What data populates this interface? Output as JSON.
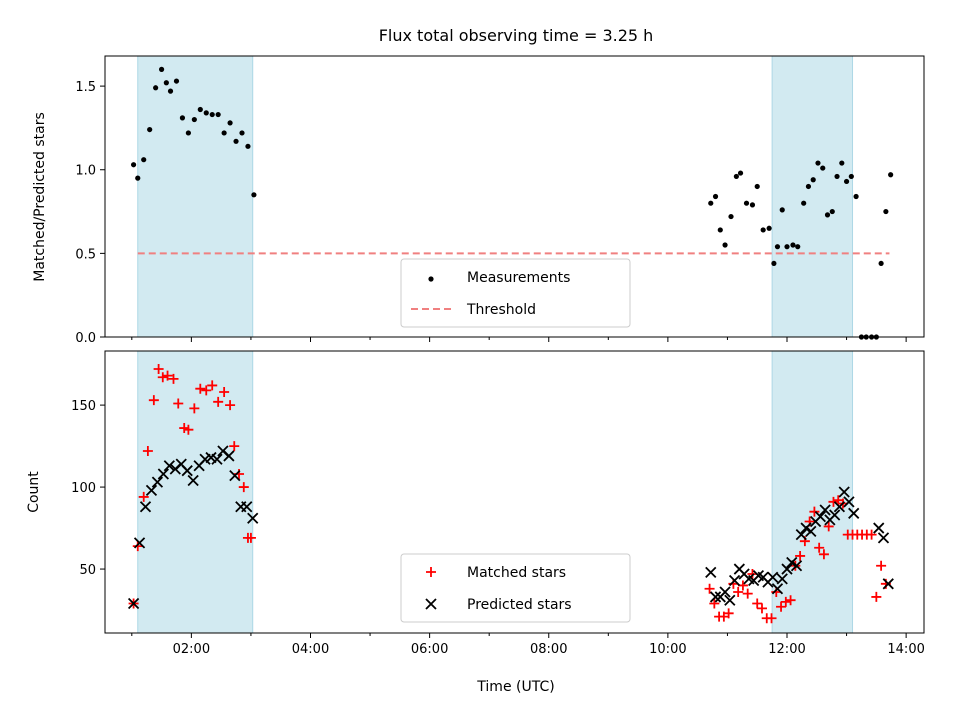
{
  "figure": {
    "title": "Flux total observing time = 3.25 h",
    "xlabel": "Time (UTC)"
  },
  "colors": {
    "band_fill": "#add8e6",
    "measurement": "#000000",
    "threshold": "#f08080",
    "matched": "#ff0000",
    "predicted": "#000000"
  },
  "chart_data": [
    {
      "type": "scatter",
      "panel": "top",
      "ylabel": "Matched/Predicted stars",
      "x_unit": "hours UTC",
      "xlim": [
        0.55,
        14.3
      ],
      "ylim": [
        0,
        1.68
      ],
      "xticks": [
        {
          "v": 2,
          "label": "02:00"
        },
        {
          "v": 4,
          "label": "04:00"
        },
        {
          "v": 6,
          "label": "06:00"
        },
        {
          "v": 8,
          "label": "08:00"
        },
        {
          "v": 10,
          "label": "10:00"
        },
        {
          "v": 12,
          "label": "12:00"
        },
        {
          "v": 14,
          "label": "14:00"
        }
      ],
      "yticks": [
        {
          "v": 0,
          "label": "0.0"
        },
        {
          "v": 0.5,
          "label": "0.5"
        },
        {
          "v": 1.0,
          "label": "1.0"
        },
        {
          "v": 1.5,
          "label": "1.5"
        }
      ],
      "shaded_intervals": [
        [
          1.1,
          3.03
        ],
        [
          11.75,
          13.1
        ]
      ],
      "legend_position": "lower center",
      "series": [
        {
          "name": "Measurements",
          "marker": "dot",
          "x": [
            1.03,
            1.1,
            1.2,
            1.3,
            1.4,
            1.5,
            1.58,
            1.65,
            1.75,
            1.85,
            1.95,
            2.05,
            2.15,
            2.25,
            2.35,
            2.45,
            2.55,
            2.65,
            2.75,
            2.85,
            2.95,
            3.05,
            10.72,
            10.8,
            10.88,
            10.96,
            11.06,
            11.15,
            11.22,
            11.32,
            11.42,
            11.5,
            11.6,
            11.7,
            11.78,
            11.84,
            11.92,
            12.0,
            12.1,
            12.18,
            12.28,
            12.36,
            12.44,
            12.52,
            12.6,
            12.68,
            12.76,
            12.84,
            12.92,
            13.0,
            13.08,
            13.16,
            13.25,
            13.33,
            13.42,
            13.5,
            13.58,
            13.66,
            13.74
          ],
          "y": [
            1.03,
            0.95,
            1.06,
            1.24,
            1.49,
            1.6,
            1.52,
            1.47,
            1.53,
            1.31,
            1.22,
            1.3,
            1.36,
            1.34,
            1.33,
            1.33,
            1.22,
            1.28,
            1.17,
            1.22,
            1.14,
            0.85,
            0.8,
            0.84,
            0.64,
            0.55,
            0.72,
            0.96,
            0.98,
            0.8,
            0.79,
            0.9,
            0.64,
            0.65,
            0.44,
            0.54,
            0.76,
            0.54,
            0.55,
            0.54,
            0.8,
            0.9,
            0.94,
            1.04,
            1.01,
            0.73,
            0.75,
            0.96,
            1.04,
            0.93,
            0.96,
            0.84,
            0.0,
            0.0,
            0.0,
            0.0,
            0.44,
            0.75,
            0.97
          ]
        },
        {
          "name": "Threshold",
          "type": "line",
          "style": "dashed",
          "x": [
            1.1,
            13.72
          ],
          "y": [
            0.5,
            0.5
          ]
        }
      ]
    },
    {
      "type": "scatter",
      "panel": "bottom",
      "ylabel": "Count",
      "x_unit": "hours UTC",
      "xlim": [
        0.55,
        14.3
      ],
      "ylim": [
        11,
        183
      ],
      "xticks": [
        {
          "v": 2,
          "label": "02:00"
        },
        {
          "v": 4,
          "label": "04:00"
        },
        {
          "v": 6,
          "label": "06:00"
        },
        {
          "v": 8,
          "label": "08:00"
        },
        {
          "v": 10,
          "label": "10:00"
        },
        {
          "v": 12,
          "label": "12:00"
        },
        {
          "v": 14,
          "label": "14:00"
        }
      ],
      "yticks": [
        {
          "v": 50,
          "label": "50"
        },
        {
          "v": 100,
          "label": "100"
        },
        {
          "v": 150,
          "label": "150"
        }
      ],
      "shaded_intervals": [
        [
          1.1,
          3.03
        ],
        [
          11.75,
          13.1
        ]
      ],
      "legend_position": "lower center",
      "series": [
        {
          "name": "Matched stars",
          "marker": "plus",
          "x": [
            1.03,
            1.1,
            1.2,
            1.27,
            1.37,
            1.45,
            1.52,
            1.6,
            1.7,
            1.78,
            1.88,
            1.95,
            2.05,
            2.15,
            2.25,
            2.35,
            2.45,
            2.55,
            2.65,
            2.72,
            2.8,
            2.88,
            2.95,
            3.0,
            10.7,
            10.78,
            10.86,
            10.94,
            11.02,
            11.1,
            11.18,
            11.26,
            11.34,
            11.42,
            11.5,
            11.58,
            11.66,
            11.74,
            11.82,
            11.9,
            11.98,
            12.06,
            12.14,
            12.22,
            12.3,
            12.38,
            12.46,
            12.54,
            12.62,
            12.7,
            12.78,
            12.86,
            12.94,
            13.02,
            13.1,
            13.18,
            13.26,
            13.34,
            13.42,
            13.5,
            13.58,
            13.66
          ],
          "y": [
            29,
            64,
            94,
            122,
            153,
            172,
            167,
            168,
            166,
            151,
            136,
            135,
            148,
            160,
            159,
            162,
            152,
            158,
            150,
            125,
            108,
            100,
            69,
            69,
            38,
            29,
            21,
            21,
            23,
            41,
            36,
            40,
            35,
            47,
            29,
            26,
            20,
            20,
            36,
            27,
            30,
            31,
            52,
            58,
            67,
            79,
            85,
            63,
            59,
            76,
            91,
            92,
            90,
            71,
            71,
            71,
            71,
            71,
            71,
            33,
            52,
            41
          ]
        },
        {
          "name": "Predicted stars",
          "marker": "x",
          "x": [
            1.03,
            1.13,
            1.23,
            1.33,
            1.43,
            1.53,
            1.63,
            1.73,
            1.83,
            1.93,
            2.03,
            2.13,
            2.23,
            2.33,
            2.43,
            2.53,
            2.63,
            2.73,
            2.83,
            2.93,
            3.03,
            10.72,
            10.8,
            10.88,
            10.96,
            11.04,
            11.12,
            11.2,
            11.28,
            11.36,
            11.44,
            11.52,
            11.6,
            11.68,
            11.76,
            11.84,
            11.92,
            12.0,
            12.08,
            12.16,
            12.24,
            12.32,
            12.4,
            12.48,
            12.56,
            12.64,
            12.72,
            12.8,
            12.88,
            12.96,
            13.04,
            13.12,
            13.54,
            13.62,
            13.7
          ],
          "y": [
            29,
            66,
            88,
            98,
            103,
            108,
            113,
            111,
            114,
            110,
            104,
            113,
            117,
            118,
            117,
            122,
            119,
            107,
            88,
            88,
            81,
            48,
            33,
            33,
            36,
            31,
            43,
            50,
            47,
            44,
            43,
            46,
            45,
            42,
            45,
            38,
            44,
            50,
            54,
            52,
            71,
            75,
            73,
            79,
            82,
            86,
            80,
            83,
            88,
            97,
            91,
            84,
            75,
            69,
            41
          ]
        }
      ]
    }
  ]
}
